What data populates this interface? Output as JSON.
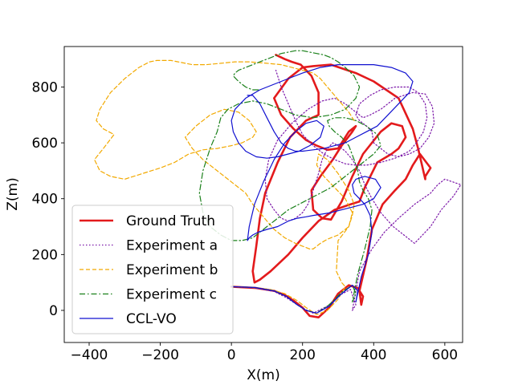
{
  "chart_data": {
    "type": "line",
    "title": "",
    "xlabel": "X(m)",
    "ylabel": "Z(m)",
    "xlim": [
      -470,
      650
    ],
    "ylim": [
      -115,
      945
    ],
    "xticks": [
      -400,
      -200,
      0,
      200,
      400,
      600
    ],
    "yticks": [
      0,
      200,
      400,
      600,
      800
    ],
    "xtick_labels": [
      "−400",
      "−200",
      "0",
      "200",
      "400",
      "600"
    ],
    "ytick_labels": [
      "0",
      "200",
      "400",
      "600",
      "800"
    ],
    "grid": false,
    "legend_position": "lower-left",
    "series": [
      {
        "name": "Ground Truth",
        "color": "#e31a1c",
        "style": "solid",
        "width": 2.6,
        "x": [
          0,
          70,
          120,
          150,
          175,
          200,
          220,
          245,
          275,
          300,
          330,
          355,
          370,
          365,
          360,
          380,
          395,
          425,
          460,
          490,
          510,
          530,
          560,
          545,
          545,
          525,
          510,
          470,
          400,
          350,
          280,
          230,
          200,
          160,
          120,
          140,
          175,
          210,
          240,
          270,
          300,
          330,
          350,
          340,
          310,
          285,
          250,
          225,
          230,
          255,
          280,
          310,
          340,
          370,
          420,
          450,
          480,
          490,
          470,
          450,
          410,
          375,
          360,
          335,
          290,
          245,
          200,
          160,
          110,
          80,
          65,
          60,
          70,
          80,
          95,
          130,
          165,
          210,
          245,
          245,
          225,
          195,
          170,
          150,
          125
        ],
        "y": [
          85,
          80,
          70,
          55,
          35,
          10,
          -20,
          -25,
          10,
          60,
          90,
          80,
          50,
          20,
          70,
          180,
          290,
          380,
          430,
          470,
          520,
          560,
          510,
          480,
          470,
          580,
          650,
          760,
          820,
          850,
          880,
          875,
          870,
          830,
          760,
          700,
          650,
          610,
          590,
          575,
          580,
          640,
          660,
          640,
          590,
          540,
          480,
          430,
          360,
          330,
          325,
          390,
          480,
          560,
          640,
          670,
          660,
          620,
          580,
          560,
          530,
          440,
          390,
          380,
          360,
          320,
          260,
          200,
          140,
          110,
          100,
          140,
          230,
          330,
          420,
          530,
          620,
          680,
          700,
          780,
          840,
          880,
          890,
          900,
          915
        ]
      },
      {
        "name": "Experiment a",
        "color": "#7b16a8",
        "style": "dotted",
        "width": 1.2,
        "x": [
          0,
          65,
          120,
          155,
          185,
          205,
          230,
          270,
          305,
          335,
          350,
          340,
          360,
          395,
          430,
          470,
          515,
          560,
          580,
          600,
          645,
          625,
          590,
          560,
          515,
          495,
          455,
          420,
          395,
          375,
          360,
          340,
          320,
          300,
          285,
          270,
          255,
          245,
          230,
          215,
          200,
          180,
          160,
          140,
          120,
          100,
          95,
          105,
          130,
          170,
          215,
          255,
          290,
          320,
          350,
          370,
          390,
          420,
          460,
          510,
          545,
          565,
          570,
          555,
          530,
          500,
          470,
          440,
          420,
          400,
          395,
          380,
          360,
          350,
          360,
          390,
          420,
          460,
          500,
          525,
          545,
          550,
          540,
          520,
          500,
          460,
          420,
          380,
          350,
          320,
          290,
          260,
          230,
          200,
          180,
          160,
          140,
          125
        ],
        "y": [
          85,
          80,
          68,
          45,
          20,
          5,
          -10,
          15,
          55,
          75,
          20,
          0,
          140,
          220,
          280,
          330,
          380,
          420,
          450,
          470,
          450,
          410,
          360,
          300,
          240,
          260,
          300,
          350,
          400,
          450,
          500,
          540,
          570,
          590,
          600,
          580,
          540,
          490,
          430,
          380,
          350,
          330,
          320,
          330,
          360,
          400,
          470,
          540,
          610,
          670,
          720,
          750,
          760,
          740,
          710,
          690,
          700,
          720,
          760,
          780,
          775,
          730,
          670,
          620,
          580,
          560,
          550,
          560,
          580,
          600,
          640,
          660,
          680,
          700,
          740,
          770,
          790,
          800,
          800,
          780,
          740,
          690,
          640,
          600,
          570,
          545,
          530,
          520,
          520,
          525,
          540,
          560,
          590,
          630,
          680,
          740,
          800,
          860
        ]
      },
      {
        "name": "Experiment b",
        "color": "#f2a900",
        "style": "dashed",
        "width": 1.2,
        "x": [
          0,
          60,
          110,
          150,
          185,
          210,
          240,
          270,
          300,
          320,
          310,
          295,
          300,
          330,
          340,
          345,
          330,
          300,
          270,
          245,
          240,
          260,
          290,
          320,
          340,
          330,
          300,
          270,
          250,
          240,
          230,
          220,
          200,
          180,
          150,
          120,
          100,
          80,
          60,
          40,
          0,
          -40,
          -80,
          -110,
          -130,
          -100,
          -60,
          -20,
          20,
          50,
          70,
          60,
          30,
          0,
          -40,
          -80,
          -120,
          -160,
          -200,
          -250,
          -300,
          -340,
          -370,
          -385,
          -360,
          -330,
          -360,
          -380,
          -370,
          -340,
          -300,
          -260,
          -230,
          -210,
          -190,
          -170,
          -150,
          -110,
          -70,
          -30,
          10,
          50,
          100,
          140,
          170,
          200,
          230,
          250,
          270,
          290,
          310,
          330,
          340,
          345
        ],
        "y": [
          85,
          82,
          75,
          60,
          35,
          10,
          -15,
          0,
          40,
          85,
          100,
          140,
          250,
          300,
          340,
          380,
          430,
          490,
          540,
          560,
          520,
          480,
          440,
          400,
          350,
          300,
          270,
          255,
          240,
          230,
          220,
          220,
          230,
          240,
          260,
          290,
          320,
          350,
          380,
          420,
          460,
          500,
          540,
          580,
          620,
          660,
          700,
          720,
          710,
          680,
          640,
          620,
          600,
          590,
          580,
          575,
          560,
          530,
          510,
          490,
          470,
          480,
          500,
          540,
          580,
          630,
          650,
          680,
          720,
          780,
          830,
          870,
          890,
          895,
          895,
          895,
          890,
          880,
          880,
          885,
          890,
          890,
          885,
          880,
          870,
          860,
          850,
          830,
          800,
          770,
          740,
          710,
          690,
          680
        ]
      },
      {
        "name": "Experiment c",
        "color": "#1a801a",
        "style": "dashdot",
        "width": 1.2,
        "x": [
          0,
          65,
          120,
          155,
          185,
          210,
          240,
          275,
          310,
          340,
          350,
          340,
          355,
          375,
          390,
          395,
          385,
          370,
          360,
          355,
          345,
          330,
          310,
          290,
          275,
          270,
          290,
          320,
          350,
          380,
          410,
          420,
          400,
          370,
          340,
          310,
          280,
          250,
          220,
          190,
          160,
          140,
          120,
          100,
          80,
          60,
          30,
          0,
          -30,
          -60,
          -80,
          -90,
          -80,
          -60,
          -40,
          -30,
          -10,
          20,
          60,
          100,
          140,
          180,
          230,
          280,
          320,
          350,
          360,
          345,
          320,
          300,
          280,
          260,
          240,
          220,
          200,
          180,
          160,
          140,
          120,
          100,
          80,
          60,
          40,
          20,
          10,
          5,
          20,
          40,
          60,
          80
        ],
        "y": [
          85,
          82,
          70,
          50,
          20,
          0,
          -10,
          20,
          65,
          90,
          60,
          30,
          130,
          220,
          300,
          360,
          400,
          430,
          460,
          500,
          540,
          590,
          620,
          640,
          660,
          680,
          690,
          690,
          680,
          660,
          630,
          590,
          560,
          530,
          500,
          470,
          440,
          420,
          400,
          380,
          360,
          340,
          320,
          300,
          280,
          260,
          250,
          250,
          270,
          300,
          350,
          420,
          500,
          580,
          640,
          690,
          720,
          740,
          750,
          740,
          720,
          700,
          690,
          700,
          720,
          760,
          800,
          840,
          870,
          890,
          905,
          915,
          920,
          925,
          930,
          930,
          925,
          920,
          910,
          900,
          890,
          880,
          870,
          860,
          850,
          840,
          820,
          800,
          790,
          790
        ]
      },
      {
        "name": "CCL-VO",
        "color": "#1010d0",
        "style": "solid",
        "width": 1.2,
        "x": [
          0,
          65,
          120,
          155,
          185,
          210,
          240,
          275,
          310,
          340,
          355,
          350,
          365,
          385,
          395,
          390,
          375,
          360,
          345,
          340,
          350,
          375,
          405,
          420,
          400,
          370,
          340,
          310,
          280,
          255,
          230,
          210,
          185,
          160,
          130,
          100,
          75,
          60,
          50,
          45,
          50,
          65,
          90,
          120,
          150,
          180,
          210,
          240,
          260,
          250,
          220,
          190,
          160,
          130,
          100,
          70,
          40,
          20,
          5,
          0,
          10,
          40,
          80,
          120,
          160,
          200,
          250,
          300,
          350,
          400,
          450,
          490,
          510,
          500,
          470,
          440,
          410,
          380,
          350,
          320,
          290,
          260,
          230,
          200,
          180,
          160,
          140,
          120,
          100,
          80,
          60,
          45,
          50
        ],
        "y": [
          85,
          82,
          70,
          50,
          20,
          0,
          -10,
          15,
          60,
          90,
          70,
          30,
          120,
          200,
          280,
          340,
          380,
          400,
          420,
          450,
          470,
          480,
          470,
          440,
          400,
          380,
          370,
          360,
          350,
          345,
          340,
          335,
          330,
          320,
          300,
          290,
          280,
          270,
          260,
          250,
          300,
          380,
          460,
          540,
          600,
          640,
          670,
          680,
          660,
          620,
          590,
          570,
          560,
          550,
          545,
          550,
          570,
          600,
          640,
          680,
          720,
          760,
          790,
          810,
          830,
          850,
          870,
          880,
          880,
          880,
          870,
          850,
          820,
          780,
          740,
          700,
          660,
          640,
          620,
          600,
          590,
          580,
          575,
          570,
          570,
          580,
          600,
          640,
          690,
          740,
          770,
          770,
          770
        ]
      }
    ]
  }
}
